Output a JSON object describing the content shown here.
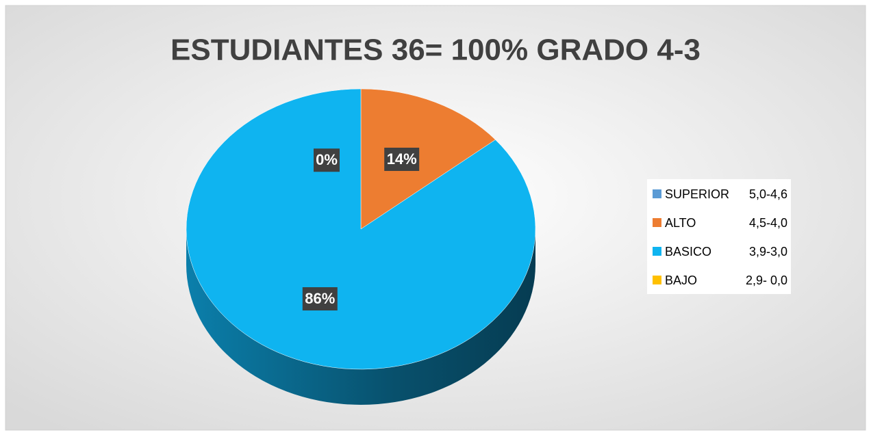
{
  "chart_data": {
    "type": "pie",
    "title": "ESTUDIANTES 36= 100% GRADO 4-3",
    "categories": [
      "SUPERIOR",
      "ALTO",
      "BASICO",
      "BAJO"
    ],
    "ranges": [
      "5,0-4,6",
      "4,5-4,0",
      "3,9-3,0",
      "2,9- 0,0"
    ],
    "values": [
      0,
      14,
      86,
      0
    ],
    "value_labels": [
      "0%",
      "14%",
      "86%",
      null
    ],
    "colors": [
      "#5b9bd5",
      "#ed7d31",
      "#0fb4f0",
      "#ffc000"
    ]
  }
}
